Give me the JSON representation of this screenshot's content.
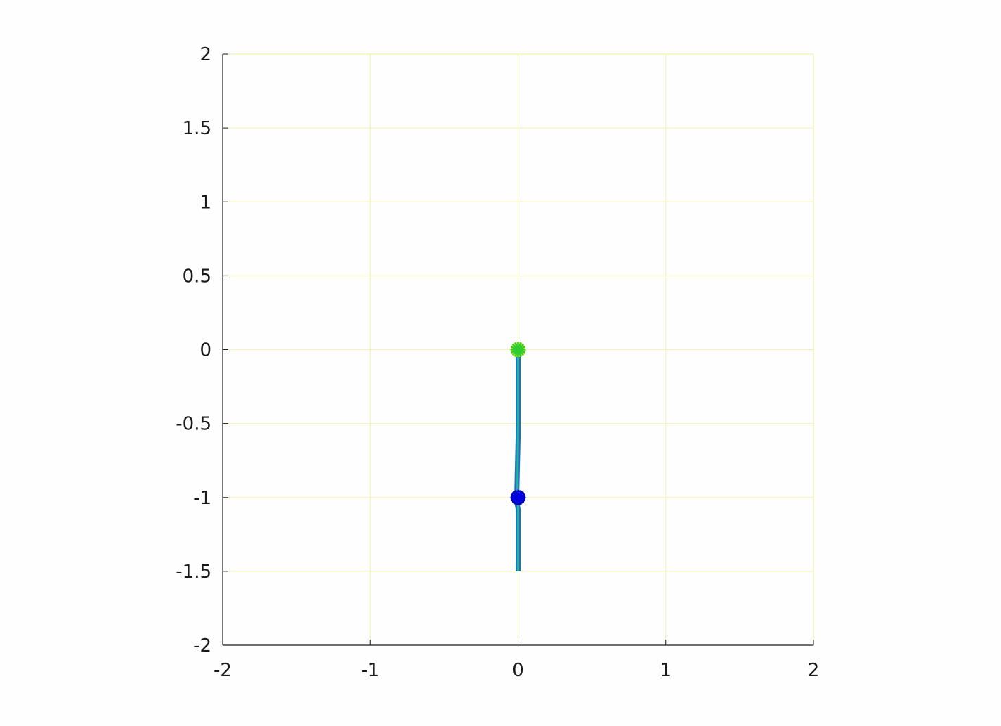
{
  "chart_data": {
    "type": "line",
    "title": "",
    "xlabel": "",
    "ylabel": "",
    "xlim": [
      -2,
      2
    ],
    "ylim": [
      -2,
      2
    ],
    "grid": true,
    "xticks": [
      -2,
      -1,
      0,
      1,
      2
    ],
    "yticks": [
      -2,
      -1.5,
      -1,
      -0.5,
      0,
      0.5,
      1,
      1.5,
      2
    ],
    "xtick_labels": [
      "-2",
      "-1",
      "0",
      "1",
      "2"
    ],
    "ytick_labels": [
      "-2",
      "-1.5",
      "-1",
      "-0.5",
      "0",
      "0.5",
      "1",
      "1.5",
      "2"
    ],
    "series": [
      {
        "color": "#1f6fbf",
        "x": [
          0.0,
          0.0,
          0.0,
          -0.01,
          0.0,
          0.0,
          0.0
        ],
        "y": [
          -1.5,
          -1.2,
          -1.08,
          -1.02,
          -0.6,
          -0.1,
          -0.03
        ]
      },
      {
        "color": "#22b5a0",
        "x": [
          0.0,
          0.0,
          0.0,
          -0.005,
          0.0,
          0.0
        ],
        "y": [
          -1.5,
          -1.2,
          -1.06,
          -1.0,
          -0.5,
          -0.03
        ]
      }
    ],
    "markers": [
      {
        "symbol": "circle",
        "color": "#e8e800",
        "x": 0.0,
        "y": 0.0
      },
      {
        "symbol": "star",
        "color": "#2ecc2e",
        "x": 0.0,
        "y": 0.0
      },
      {
        "symbol": "star",
        "color": "#0000e0",
        "x": 0.0,
        "y": -1.0
      },
      {
        "symbol": "circle",
        "color": "#0000c0",
        "x": 0.0,
        "y": -1.0
      }
    ],
    "colors": {
      "axis": "#1a1a1a",
      "grid": "#f2f2b0",
      "tick_label": "#1a1a1a",
      "background": "#fefefe"
    }
  }
}
